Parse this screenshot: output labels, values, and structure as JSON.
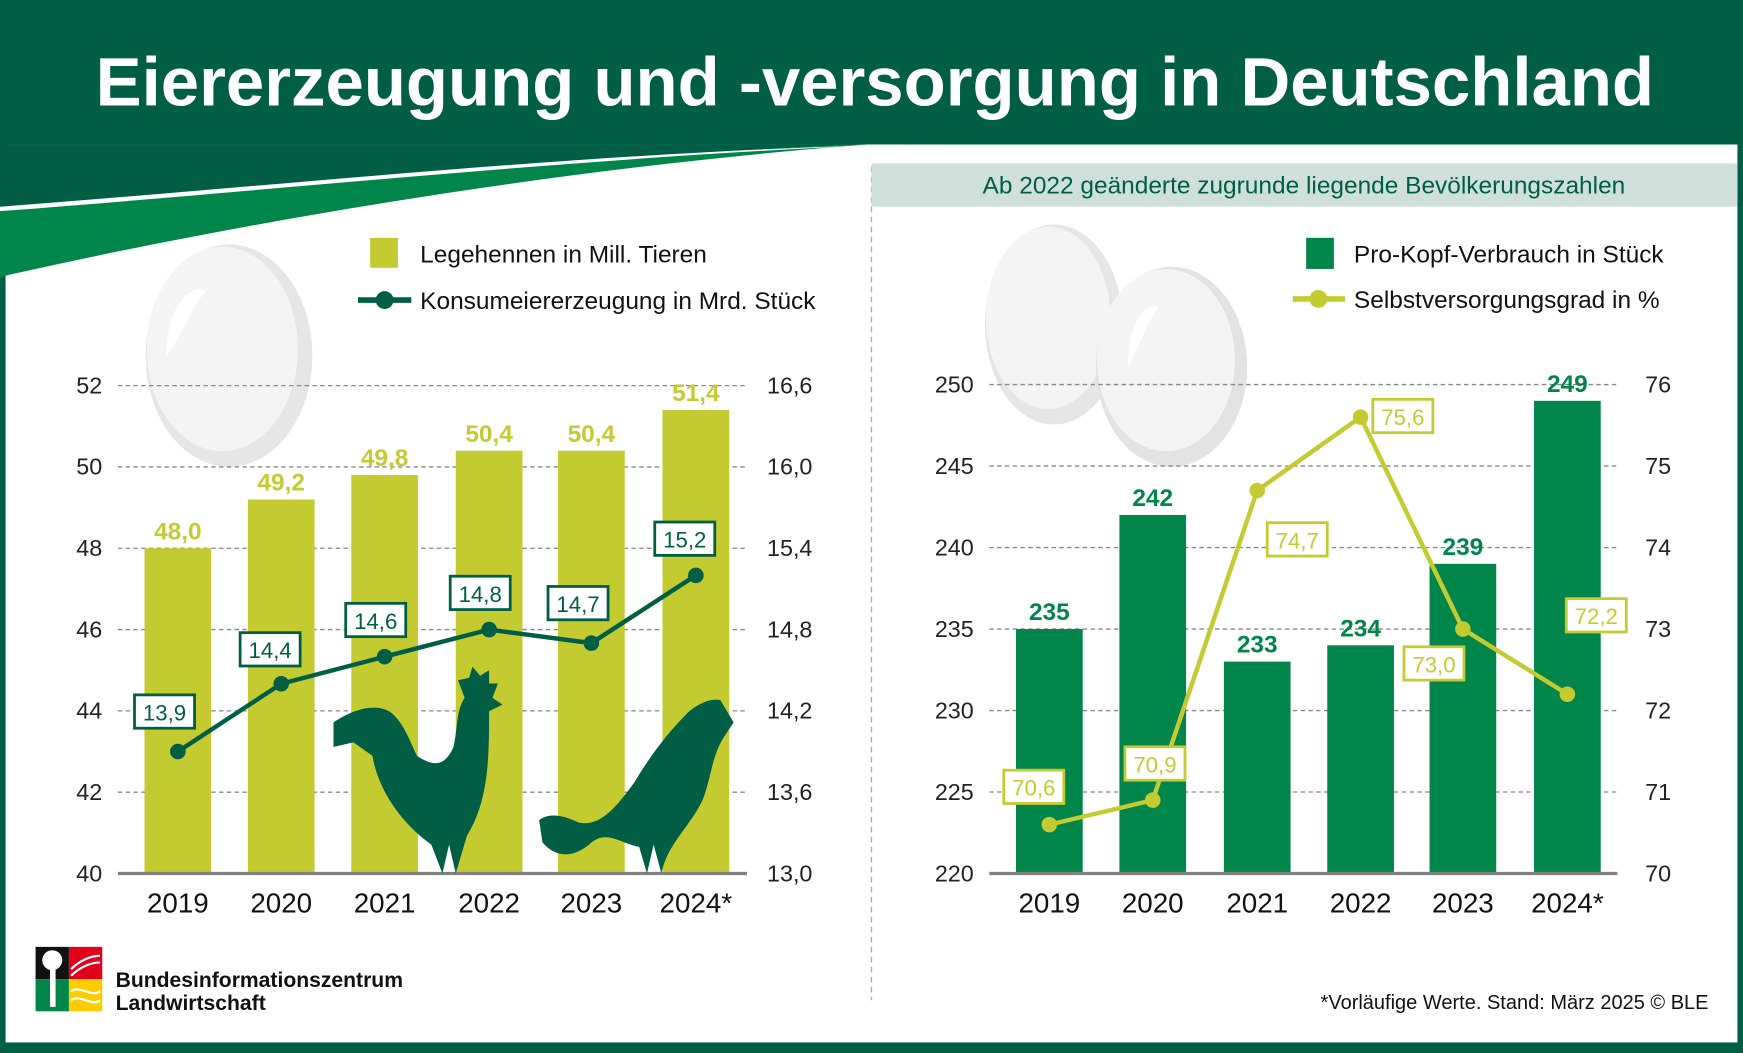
{
  "header": {
    "title": "Eiererzeugung und -versorgung in Deutschland"
  },
  "colors": {
    "dark_green": "#005e45",
    "mid_green": "#00854a",
    "lime": "#c3cb31",
    "note_bg": "#cfe0da",
    "grid": "#888888",
    "axis": "#808080"
  },
  "right_note": "Ab 2022 geänderte zugrunde liegende Bevölkerungszahlen",
  "logo": {
    "line1": "Bundesinformationszentrum",
    "line2": "Landwirtschaft"
  },
  "footnote": "*Vorläufige Werte. Stand: März 2025 © BLE",
  "chart_data": [
    {
      "type": "bar",
      "title": "",
      "categories": [
        "2019",
        "2020",
        "2021",
        "2022",
        "2023",
        "2024*"
      ],
      "series": [
        {
          "name": "Legehennen in Mill. Tieren",
          "kind": "bar",
          "axis": "left",
          "values": [
            48.0,
            49.2,
            49.8,
            50.4,
            50.4,
            51.4
          ],
          "labels": [
            "48,0",
            "49,2",
            "49,8",
            "50,4",
            "50,4",
            "51,4"
          ]
        },
        {
          "name": "Konsumeiererzeugung in Mrd. Stück",
          "kind": "line",
          "axis": "right",
          "values": [
            13.9,
            14.4,
            14.6,
            14.8,
            14.7,
            15.2
          ],
          "labels": [
            "13,9",
            "14,4",
            "14,6",
            "14,8",
            "14,7",
            "15,2"
          ]
        }
      ],
      "y_left": {
        "range": [
          40,
          52
        ],
        "ticks": [
          "40",
          "42",
          "44",
          "46",
          "48",
          "50",
          "52"
        ]
      },
      "y_right": {
        "range": [
          13.0,
          16.6
        ],
        "ticks": [
          "13,0",
          "13,6",
          "14,2",
          "14,8",
          "15,4",
          "16,0",
          "16,6"
        ]
      },
      "grid": true,
      "legend": "top-right"
    },
    {
      "type": "bar",
      "title": "",
      "categories": [
        "2019",
        "2020",
        "2021",
        "2022",
        "2023",
        "2024*"
      ],
      "series": [
        {
          "name": "Pro-Kopf-Verbrauch in Stück",
          "kind": "bar",
          "axis": "left",
          "values": [
            235,
            242,
            233,
            234,
            239,
            249
          ],
          "labels": [
            "235",
            "242",
            "233",
            "234",
            "239",
            "249"
          ]
        },
        {
          "name": "Selbstversorgungsgrad in %",
          "kind": "line",
          "axis": "right",
          "values": [
            70.6,
            70.9,
            74.7,
            75.6,
            73.0,
            72.2
          ],
          "labels": [
            "70,6",
            "70,9",
            "74,7",
            "75,6",
            "73,0",
            "72,2"
          ]
        }
      ],
      "y_left": {
        "range": [
          220,
          250
        ],
        "ticks": [
          "220",
          "225",
          "230",
          "235",
          "240",
          "245",
          "250"
        ]
      },
      "y_right": {
        "range": [
          70,
          76
        ],
        "ticks": [
          "70",
          "71",
          "72",
          "73",
          "74",
          "75",
          "76"
        ]
      },
      "grid": true,
      "legend": "top-right"
    }
  ]
}
